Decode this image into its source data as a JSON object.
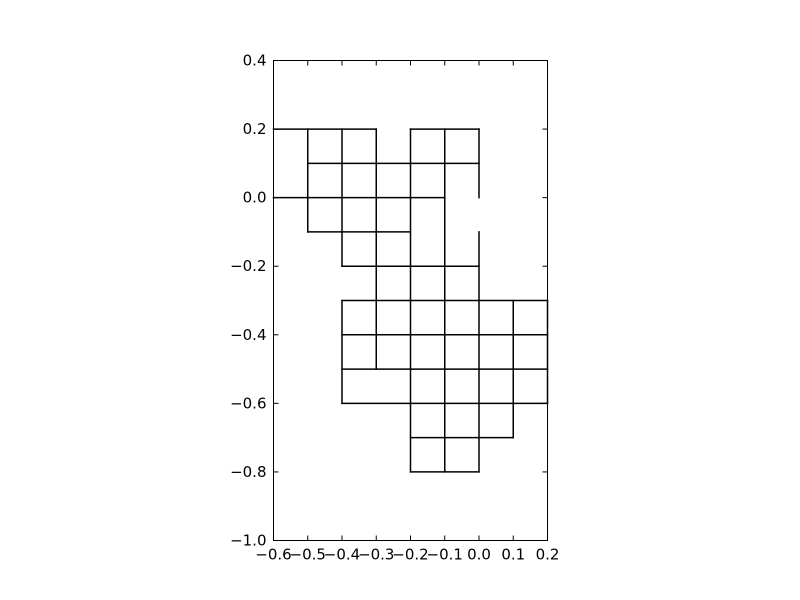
{
  "chart_data": {
    "type": "line",
    "title": "",
    "xlabel": "",
    "ylabel": "",
    "xlim": [
      -0.6,
      0.2
    ],
    "ylim": [
      -1.0,
      0.4
    ],
    "aspect": "equal",
    "grid": false,
    "x_ticks": [
      "−0.6",
      "−0.5",
      "−0.4",
      "−0.3",
      "−0.2",
      "−0.1",
      "0.0",
      "0.1",
      "0.2"
    ],
    "y_ticks": [
      "0.4",
      "0.2",
      "0.0",
      "−0.2",
      "−0.4",
      "−0.6",
      "−0.8",
      "−1.0"
    ],
    "x_tick_values": [
      -0.6,
      -0.5,
      -0.4,
      -0.3,
      -0.2,
      -0.1,
      0.0,
      0.1,
      0.2
    ],
    "y_tick_values": [
      0.4,
      0.2,
      0.0,
      -0.2,
      -0.4,
      -0.6,
      -0.8,
      -1.0
    ],
    "segments": [
      [
        [
          -0.6,
          0.2
        ],
        [
          -0.3,
          0.2
        ]
      ],
      [
        [
          -0.2,
          0.2
        ],
        [
          0.0,
          0.2
        ]
      ],
      [
        [
          -0.5,
          0.1
        ],
        [
          -0.2,
          0.1
        ]
      ],
      [
        [
          -0.2,
          0.1
        ],
        [
          0.0,
          0.1
        ]
      ],
      [
        [
          -0.6,
          0.0
        ],
        [
          -0.1,
          0.0
        ]
      ],
      [
        [
          -0.5,
          -0.1
        ],
        [
          -0.2,
          -0.1
        ]
      ],
      [
        [
          -0.1,
          -0.1
        ],
        [
          -0.1,
          -0.1
        ]
      ],
      [
        [
          -0.4,
          -0.2
        ],
        [
          0.0,
          -0.2
        ]
      ],
      [
        [
          -0.3,
          -0.3
        ],
        [
          0.2,
          -0.3
        ]
      ],
      [
        [
          -0.4,
          -0.3
        ],
        [
          -0.3,
          -0.3
        ]
      ],
      [
        [
          -0.4,
          -0.4
        ],
        [
          0.2,
          -0.4
        ]
      ],
      [
        [
          -0.4,
          -0.5
        ],
        [
          0.2,
          -0.5
        ]
      ],
      [
        [
          -0.4,
          -0.6
        ],
        [
          0.2,
          -0.6
        ]
      ],
      [
        [
          -0.2,
          -0.7
        ],
        [
          0.1,
          -0.7
        ]
      ],
      [
        [
          -0.2,
          -0.8
        ],
        [
          0.0,
          -0.8
        ]
      ],
      [
        [
          -0.5,
          0.2
        ],
        [
          -0.5,
          -0.1
        ]
      ],
      [
        [
          -0.4,
          0.2
        ],
        [
          -0.4,
          -0.2
        ]
      ],
      [
        [
          -0.3,
          0.2
        ],
        [
          -0.3,
          0.1
        ]
      ],
      [
        [
          -0.3,
          0.1
        ],
        [
          -0.3,
          -0.2
        ]
      ],
      [
        [
          -0.2,
          0.2
        ],
        [
          -0.2,
          -0.8
        ]
      ],
      [
        [
          -0.1,
          0.2
        ],
        [
          -0.1,
          -0.8
        ]
      ],
      [
        [
          0.0,
          0.2
        ],
        [
          0.0,
          0.0
        ]
      ],
      [
        [
          0.0,
          -0.1
        ],
        [
          0.0,
          -0.8
        ]
      ],
      [
        [
          -0.4,
          -0.3
        ],
        [
          -0.4,
          -0.6
        ]
      ],
      [
        [
          -0.3,
          -0.2
        ],
        [
          -0.3,
          -0.5
        ]
      ],
      [
        [
          0.1,
          -0.3
        ],
        [
          0.1,
          -0.7
        ]
      ],
      [
        [
          0.2,
          -0.3
        ],
        [
          0.2,
          -0.6
        ]
      ]
    ]
  }
}
